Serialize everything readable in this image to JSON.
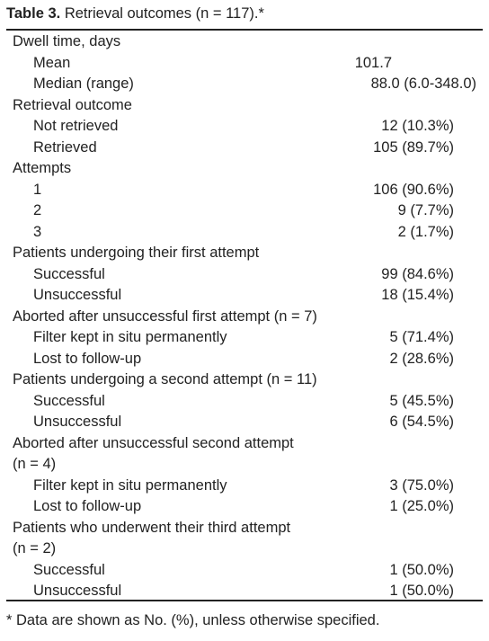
{
  "title": {
    "label": "Table 3.",
    "text": "Retrieval outcomes (n = 117).*"
  },
  "sections": [
    {
      "heading": [
        "Dwell time, days"
      ],
      "items": [
        {
          "label": "Mean",
          "value": "101.7"
        },
        {
          "label": "Median (range)",
          "value": "88.0 (6.0-348.0)"
        }
      ]
    },
    {
      "heading": [
        "Retrieval outcome"
      ],
      "items": [
        {
          "label": "Not retrieved",
          "value": "12 (10.3%)"
        },
        {
          "label": "Retrieved",
          "value": "105 (89.7%)"
        }
      ]
    },
    {
      "heading": [
        "Attempts"
      ],
      "items": [
        {
          "label": "1",
          "value": "106 (90.6%)"
        },
        {
          "label": "2",
          "value": "9 (7.7%)"
        },
        {
          "label": "3",
          "value": "2 (1.7%)"
        }
      ]
    },
    {
      "heading": [
        "Patients undergoing their first attempt"
      ],
      "items": [
        {
          "label": "Successful",
          "value": "99 (84.6%)"
        },
        {
          "label": "Unsuccessful",
          "value": "18 (15.4%)"
        }
      ]
    },
    {
      "heading": [
        "Aborted after unsuccessful first attempt (n = 7)"
      ],
      "items": [
        {
          "label": "Filter kept in situ permanently",
          "value": "5 (71.4%)"
        },
        {
          "label": "Lost to follow-up",
          "value": "2 (28.6%)"
        }
      ]
    },
    {
      "heading": [
        "Patients undergoing a second attempt (n = 11)"
      ],
      "items": [
        {
          "label": "Successful",
          "value": "5 (45.5%)"
        },
        {
          "label": "Unsuccessful",
          "value": "6 (54.5%)"
        }
      ]
    },
    {
      "heading": [
        "Aborted after unsuccessful second attempt",
        "(n = 4)"
      ],
      "items": [
        {
          "label": "Filter kept in situ permanently",
          "value": "3 (75.0%)"
        },
        {
          "label": "Lost to follow-up",
          "value": "1 (25.0%)"
        }
      ]
    },
    {
      "heading": [
        "Patients who underwent their third attempt",
        "(n = 2)"
      ],
      "items": [
        {
          "label": "Successful",
          "value": "1 (50.0%)"
        },
        {
          "label": "Unsuccessful",
          "value": "1 (50.0%)"
        }
      ]
    }
  ],
  "footnote": "* Data are shown as No. (%), unless otherwise specified."
}
